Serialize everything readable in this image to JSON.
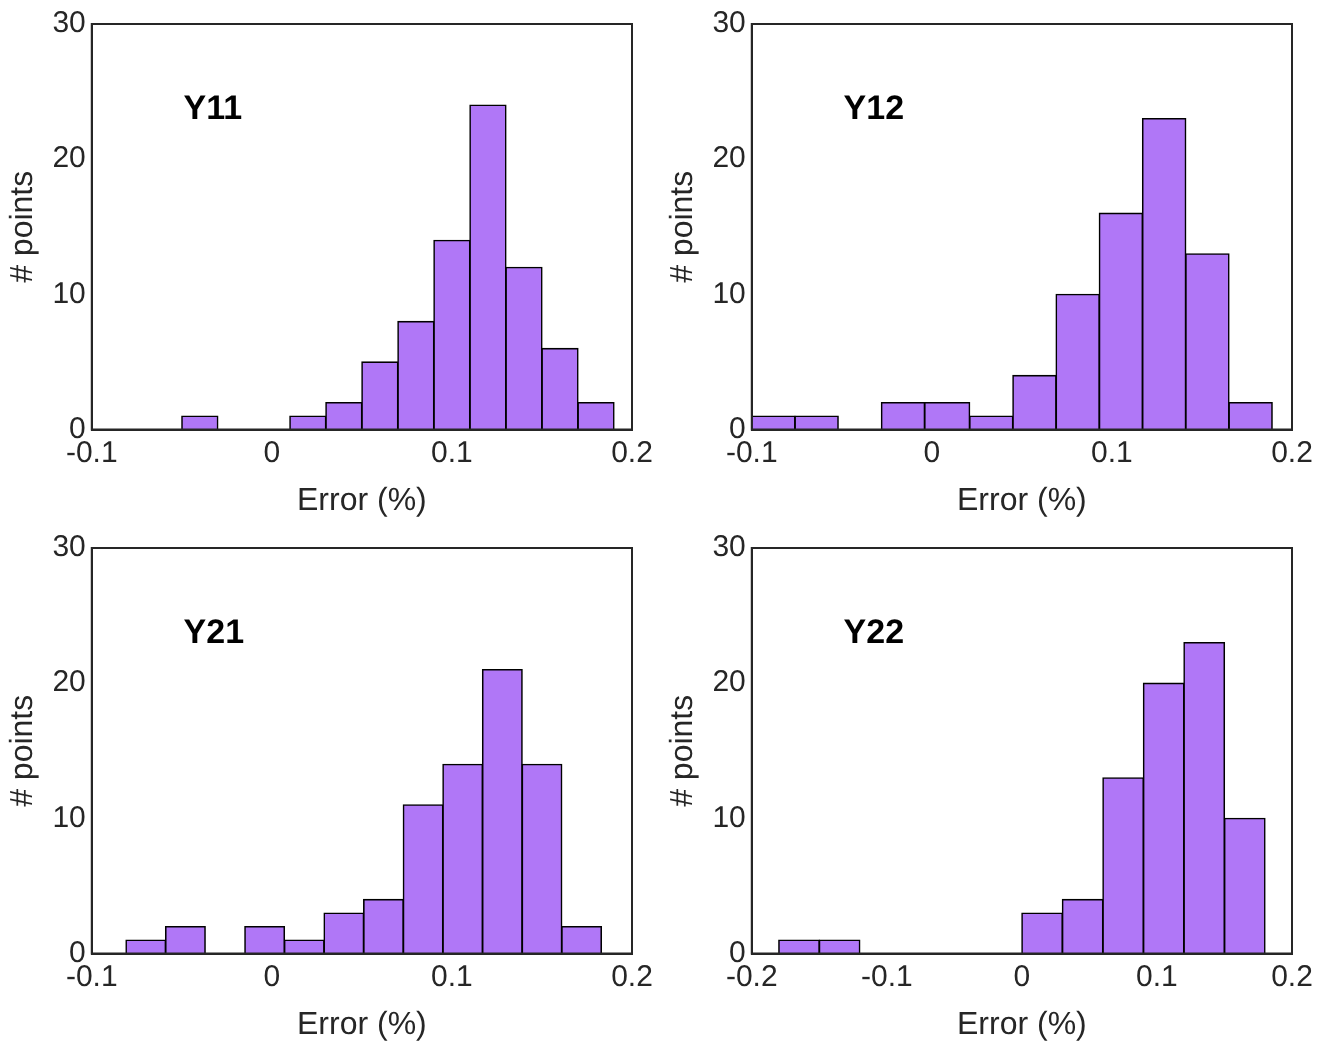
{
  "chart_data": [
    {
      "type": "histogram",
      "title": "Y11",
      "xlabel": "Error (%)",
      "ylabel": "# points",
      "color": "#b077f7",
      "grid": false,
      "xlim": [
        -0.1,
        0.2
      ],
      "xticks": [
        -0.1,
        0,
        0.1,
        0.2
      ],
      "ylim": [
        0,
        30
      ],
      "yticks": [
        0,
        10,
        20,
        30
      ],
      "bins": [
        -0.05,
        -0.03,
        -0.01,
        0.01,
        0.03,
        0.05,
        0.07,
        0.09,
        0.11,
        0.13,
        0.15,
        0.17,
        0.19
      ],
      "values": [
        1,
        0,
        0,
        1,
        2,
        5,
        8,
        14,
        24,
        12,
        6,
        2
      ]
    },
    {
      "type": "histogram",
      "title": "Y12",
      "xlabel": "Error (%)",
      "ylabel": "# points",
      "color": "#b077f7",
      "grid": false,
      "xlim": [
        -0.1,
        0.2
      ],
      "xticks": [
        -0.1,
        0,
        0.1,
        0.2
      ],
      "ylim": [
        0,
        30
      ],
      "yticks": [
        0,
        10,
        20,
        30
      ],
      "bins": [
        -0.1,
        -0.076,
        -0.052,
        -0.028,
        -0.004,
        0.021,
        0.045,
        0.069,
        0.093,
        0.117,
        0.141,
        0.165,
        0.189
      ],
      "values": [
        1,
        1,
        0,
        2,
        2,
        1,
        4,
        10,
        16,
        23,
        13,
        2
      ]
    },
    {
      "type": "histogram",
      "title": "Y21",
      "xlabel": "Error (%)",
      "ylabel": "# points",
      "color": "#b077f7",
      "grid": false,
      "xlim": [
        -0.1,
        0.2
      ],
      "xticks": [
        -0.1,
        0,
        0.1,
        0.2
      ],
      "ylim": [
        0,
        30
      ],
      "yticks": [
        0,
        10,
        20,
        30
      ],
      "bins": [
        -0.081,
        -0.059,
        -0.037,
        -0.015,
        0.007,
        0.029,
        0.051,
        0.073,
        0.095,
        0.117,
        0.139,
        0.161,
        0.183
      ],
      "values": [
        1,
        2,
        0,
        2,
        1,
        3,
        4,
        11,
        14,
        21,
        14,
        2
      ]
    },
    {
      "type": "histogram",
      "title": "Y22",
      "xlabel": "Error (%)",
      "ylabel": "# points",
      "color": "#b077f7",
      "grid": false,
      "xlim": [
        -0.2,
        0.2
      ],
      "xticks": [
        -0.2,
        -0.1,
        0,
        0.1,
        0.2
      ],
      "ylim": [
        0,
        30
      ],
      "yticks": [
        0,
        10,
        20,
        30
      ],
      "bins": [
        -0.18,
        -0.15,
        -0.12,
        -0.09,
        -0.06,
        -0.03,
        0,
        0.03,
        0.06,
        0.09,
        0.12,
        0.15,
        0.18
      ],
      "values": [
        1,
        1,
        0,
        0,
        0,
        0,
        3,
        4,
        13,
        20,
        23,
        10
      ]
    }
  ]
}
